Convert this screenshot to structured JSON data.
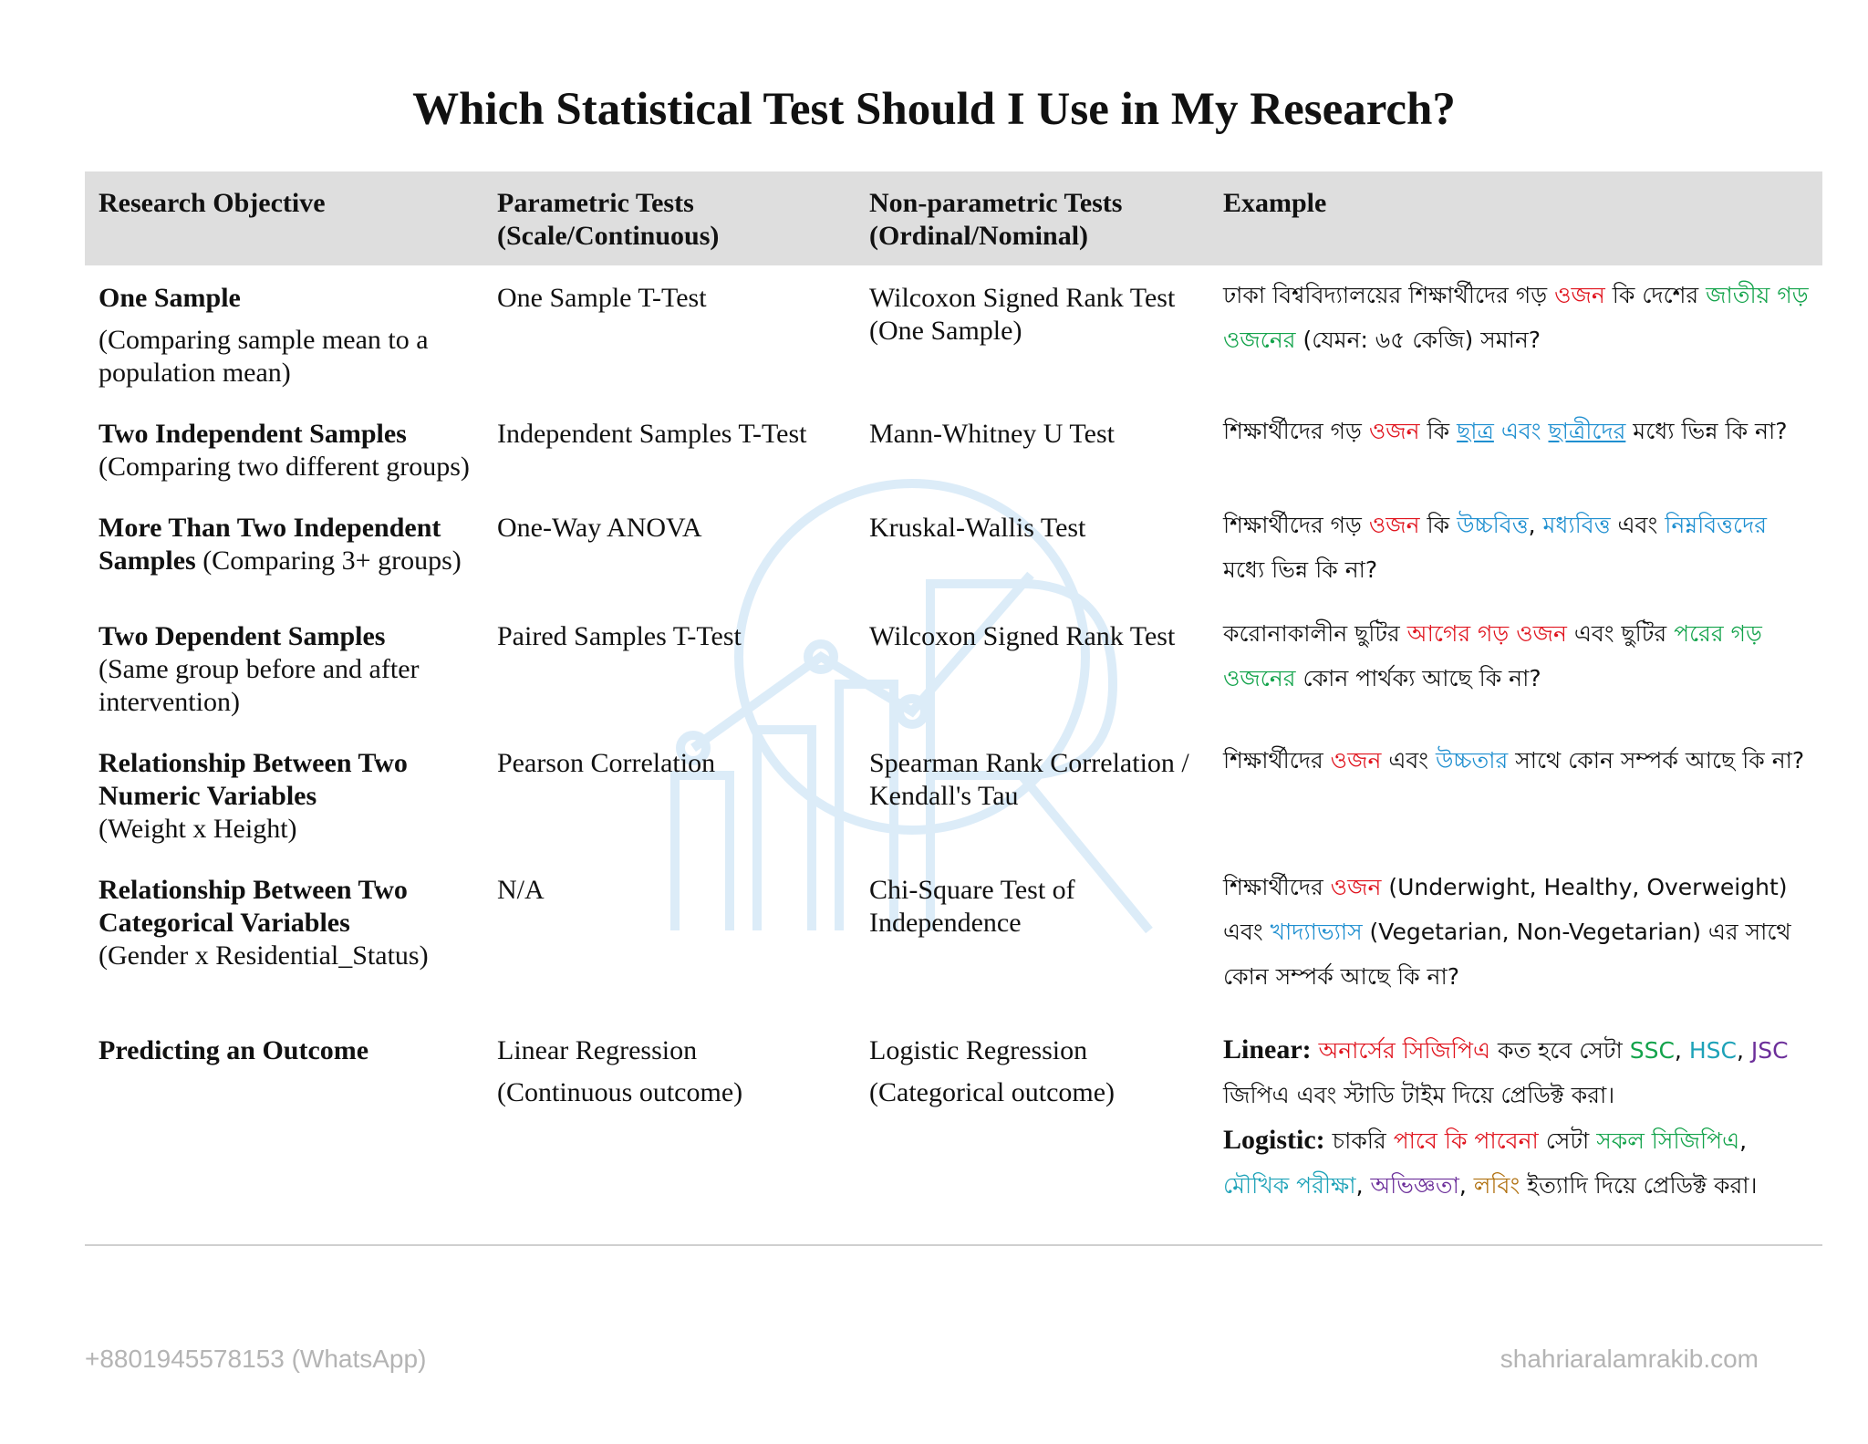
{
  "title": "Which Statistical Test Should I Use in My Research?",
  "headers": {
    "objective": "Research Objective",
    "parametric_line1": "Parametric Tests",
    "parametric_line2": "(Scale/Continuous)",
    "nonparametric_line1": "Non-parametric Tests",
    "nonparametric_line2": "(Ordinal/Nominal)",
    "example": "Example"
  },
  "rows": [
    {
      "objective_title": "One Sample",
      "objective_desc": "(Comparing sample mean to a population mean)",
      "parametric": "One Sample T-Test",
      "nonparametric": "Wilcoxon Signed Rank Test (One Sample)",
      "example": [
        {
          "t": "ঢাকা বিশ্ববিদ্যালয়ের শিক্ষার্থীদের গড় "
        },
        {
          "t": "ওজন",
          "c": "red"
        },
        {
          "t": " কি দেশের "
        },
        {
          "t": "জাতীয় গড় ওজনের",
          "c": "green"
        },
        {
          "t": " (যেমন: ৬৫ কেজি) সমান?"
        }
      ]
    },
    {
      "objective_title": "Two Independent Samples",
      "objective_desc": "(Comparing two different groups)",
      "parametric": "Independent Samples T-Test",
      "nonparametric": "Mann-Whitney U Test",
      "example": [
        {
          "t": "শিক্ষার্থীদের গড় "
        },
        {
          "t": "ওজন",
          "c": "red"
        },
        {
          "t": " কি "
        },
        {
          "t": "ছাত্র",
          "c": "blue",
          "u": true
        },
        {
          "t": " "
        },
        {
          "t": "এবং",
          "c": "blue"
        },
        {
          "t": " "
        },
        {
          "t": "ছাত্রীদের",
          "c": "blue",
          "u": true
        },
        {
          "t": " মধ্যে ভিন্ন কি না?"
        }
      ]
    },
    {
      "objective_title": "More Than Two Independent Samples",
      "objective_desc": "(Comparing 3+ groups)",
      "parametric": "One-Way ANOVA",
      "nonparametric": "Kruskal-Wallis Test",
      "example": [
        {
          "t": "শিক্ষার্থীদের গড় "
        },
        {
          "t": "ওজন",
          "c": "red"
        },
        {
          "t": " কি "
        },
        {
          "t": "উচ্চবিত্ত",
          "c": "blue"
        },
        {
          "t": ", "
        },
        {
          "t": "মধ্যবিত্ত",
          "c": "blue"
        },
        {
          "t": " এবং "
        },
        {
          "t": "নিম্নবিত্তদের",
          "c": "blue"
        },
        {
          "t": " মধ্যে ভিন্ন কি না?"
        }
      ]
    },
    {
      "objective_title": "Two Dependent Samples",
      "objective_desc": "(Same group before and after intervention)",
      "parametric": "Paired Samples T-Test",
      "nonparametric": "Wilcoxon Signed Rank Test",
      "example": [
        {
          "t": "করোনাকালীন ছুটির "
        },
        {
          "t": "আগের গড় ওজন",
          "c": "red"
        },
        {
          "t": " এবং ছুটির "
        },
        {
          "t": "পরের গড় ওজনের",
          "c": "green"
        },
        {
          "t": " কোন পার্থক্য আছে কি না?"
        }
      ]
    },
    {
      "objective_title": "Relationship Between Two Numeric Variables",
      "objective_desc": "(Weight x Height)",
      "parametric": "Pearson Correlation",
      "nonparametric": "Spearman Rank Correlation / Kendall's Tau",
      "example": [
        {
          "t": "শিক্ষার্থীদের "
        },
        {
          "t": "ওজন",
          "c": "red"
        },
        {
          "t": " এবং "
        },
        {
          "t": "উচ্চতার",
          "c": "blue"
        },
        {
          "t": " সাথে কোন সম্পর্ক আছে কি না?"
        }
      ]
    },
    {
      "objective_title": "Relationship Between Two Categorical Variables",
      "objective_desc": "(Gender x Residential_Status)",
      "parametric": "N/A",
      "nonparametric": "Chi-Square Test of Independence",
      "example": [
        {
          "t": "শিক্ষার্থীদের "
        },
        {
          "t": "ওজন",
          "c": "red"
        },
        {
          "t": " (Underwight, Healthy, Overweight) এবং "
        },
        {
          "t": "খাদ্যাভ্যাস",
          "c": "blue"
        },
        {
          "t": " (Vegetarian, Non-Vegetarian) এর সাথে কোন সম্পর্ক আছে কি না?"
        }
      ]
    },
    {
      "objective_title": "Predicting an Outcome",
      "objective_desc": "",
      "parametric": "Linear Regression",
      "parametric_note": "(Continuous outcome)",
      "nonparametric": "Logistic Regression",
      "nonparametric_note": "(Categorical outcome)",
      "example_linear": [
        {
          "t": "Linear:",
          "lead": true
        },
        {
          "t": " "
        },
        {
          "t": "অনার্সের সিজিপিএ",
          "c": "red"
        },
        {
          "t": " কত হবে সেটা "
        },
        {
          "t": "SSC",
          "c": "green"
        },
        {
          "t": ", "
        },
        {
          "t": "HSC",
          "c": "teal"
        },
        {
          "t": ", "
        },
        {
          "t": "JSC",
          "c": "purple"
        },
        {
          "t": " জিপিএ এবং স্টাডি টাইম দিয়ে প্রেডিক্ট করা।"
        }
      ],
      "example_logistic": [
        {
          "t": "Logistic:",
          "lead": true
        },
        {
          "t": " চাকরি "
        },
        {
          "t": "পাবে কি পাবেনা",
          "c": "red"
        },
        {
          "t": " সেটা "
        },
        {
          "t": "সকল সিজিপিএ",
          "c": "green"
        },
        {
          "t": ", "
        },
        {
          "t": "মৌখিক পরীক্ষা",
          "c": "teal"
        },
        {
          "t": ", "
        },
        {
          "t": "অভিজ্ঞতা",
          "c": "purple"
        },
        {
          "t": ", "
        },
        {
          "t": "লবিং",
          "c": "olive"
        },
        {
          "t": " ইত্যাদি দিয়ে প্রেডিক্ট করা।"
        }
      ]
    }
  ],
  "footer": {
    "phone": "+8801945578153 (WhatsApp)",
    "website": "shahriaralamrakib.com"
  },
  "colors": {
    "header_bg": "#dedede",
    "red": "#e0141e",
    "green": "#13a34b",
    "blue": "#1f8fd0",
    "teal": "#1da2b8",
    "purple": "#6c2f9a",
    "olive": "#b0700f",
    "footer_text": "#b4b4b4"
  }
}
